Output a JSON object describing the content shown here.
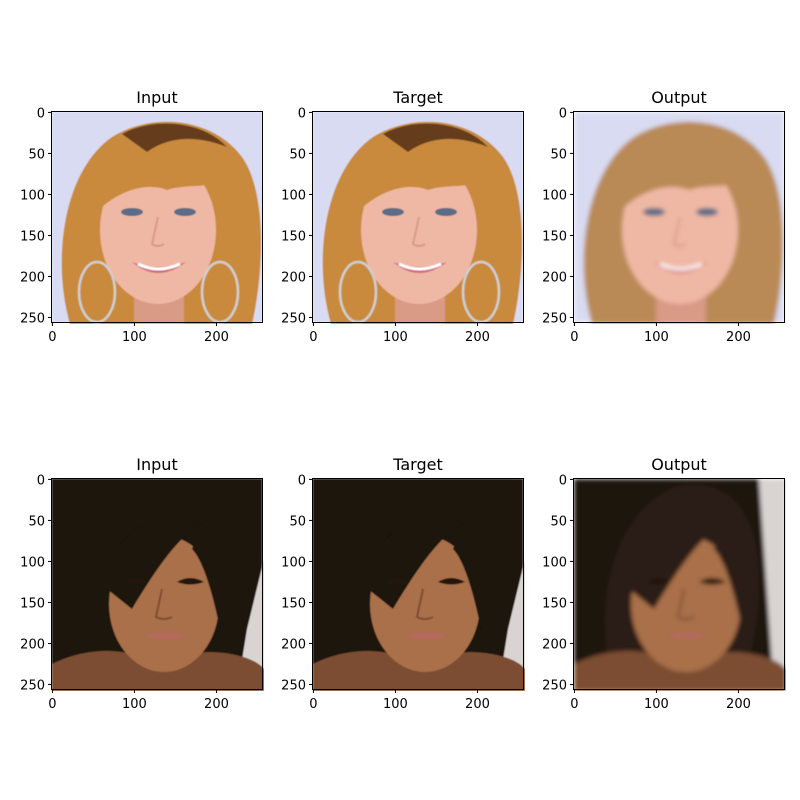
{
  "figure": {
    "rows": [
      {
        "panels": [
          {
            "title": "Input",
            "variant": "sharp"
          },
          {
            "title": "Target",
            "variant": "sharp"
          },
          {
            "title": "Output",
            "variant": "smooth"
          }
        ],
        "photo": {
          "subject": "smiling woman with wavy blonde hair and hoop earrings",
          "colors": {
            "background": "#d9dbf2",
            "hair": "#c98a3e",
            "hair_dark": "#5a3418",
            "hair_output": "#b98a55",
            "skin": "#efb8a4",
            "skin_shadow": "#d99a86",
            "lips": "#d36b7e",
            "eyes": "#5b6c86"
          }
        }
      },
      {
        "panels": [
          {
            "title": "Input",
            "variant": "sharp"
          },
          {
            "title": "Target",
            "variant": "sharp"
          },
          {
            "title": "Output",
            "variant": "smooth"
          }
        ],
        "photo": {
          "subject": "smiling woman with long dark hair and side-swept bangs",
          "colors": {
            "background": "#1e1410",
            "background_right": "#d9d4d2",
            "hair": "#1a120d",
            "hair_output": "#2a1d16",
            "skin": "#a9704a",
            "skin_shadow": "#7c4d30",
            "lips": "#b46a5c",
            "eyes": "#20140f"
          }
        }
      }
    ],
    "axes": {
      "x_ticks": [
        "0",
        "100",
        "200"
      ],
      "y_ticks": [
        "0",
        "50",
        "100",
        "150",
        "200",
        "250"
      ],
      "x_tick_values": [
        0,
        100,
        200
      ],
      "y_tick_values": [
        0,
        50,
        100,
        150,
        200,
        250
      ],
      "image_size": 256
    }
  }
}
